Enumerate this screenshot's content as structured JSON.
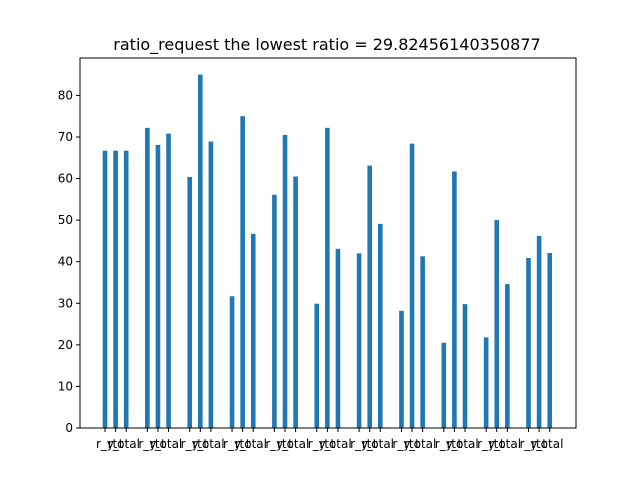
{
  "chart_data": {
    "type": "bar",
    "title": "ratio_request   the lowest ratio = 29.82456140350877",
    "xlabel": "",
    "ylabel": "",
    "ylim": [
      0,
      89
    ],
    "yticks": [
      0,
      10,
      20,
      30,
      40,
      50,
      60,
      70,
      80
    ],
    "categories": [
      "r_y",
      "r_t",
      "total"
    ],
    "groups": 11,
    "color": "#1f77b4",
    "values": [
      [
        66.7,
        66.7,
        66.7
      ],
      [
        72.2,
        68.1,
        70.8
      ],
      [
        60.4,
        85.0,
        68.9
      ],
      [
        31.7,
        75.0,
        46.7
      ],
      [
        56.1,
        70.5,
        60.5
      ],
      [
        29.9,
        72.2,
        43.1
      ],
      [
        42.0,
        63.1,
        49.1
      ],
      [
        28.2,
        68.4,
        41.3
      ],
      [
        20.5,
        61.7,
        29.8
      ],
      [
        21.8,
        50.0,
        34.6
      ],
      [
        40.9,
        46.2,
        42.1
      ]
    ]
  }
}
